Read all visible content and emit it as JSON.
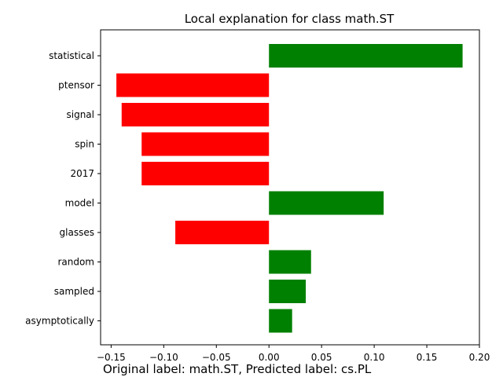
{
  "chart_data": {
    "type": "bar",
    "orientation": "horizontal",
    "title": "Local explanation for class math.ST",
    "xlabel": "",
    "ylabel": "",
    "xlim": [
      -0.16,
      0.2
    ],
    "x_ticks": [
      -0.15,
      -0.1,
      -0.05,
      0.0,
      0.05,
      0.1,
      0.15,
      0.2
    ],
    "x_tick_labels": [
      "−0.15",
      "−0.10",
      "−0.05",
      "0.00",
      "0.05",
      "0.10",
      "0.15",
      "0.20"
    ],
    "categories": [
      "statistical",
      "ptensor",
      "signal",
      "spin",
      "2017",
      "model",
      "glasses",
      "random",
      "sampled",
      "asymptotically"
    ],
    "values": [
      0.184,
      -0.145,
      -0.14,
      -0.121,
      -0.121,
      0.109,
      -0.089,
      0.04,
      0.035,
      0.022
    ],
    "colors": {
      "positive": "#008000",
      "negative": "#ff0000"
    },
    "grid": false
  },
  "caption": "Original label: math.ST, Predicted label: cs.PL"
}
